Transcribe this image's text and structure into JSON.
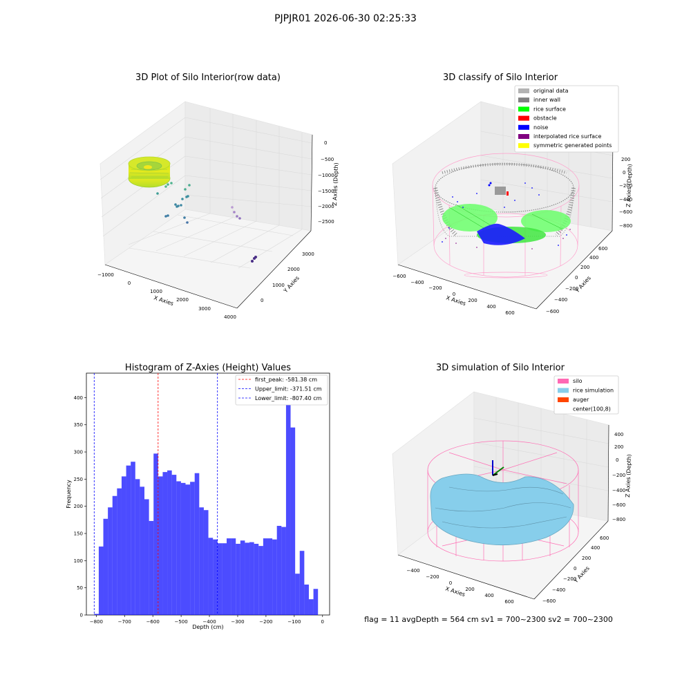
{
  "figure": {
    "suptitle": "PJPJR01 2026-06-30 02:25:33",
    "footer": "flag = 11   avgDepth = 564 cm   sv1 = 700~2300   sv2 = 700~2300"
  },
  "panels": {
    "raw": {
      "title": "3D Plot of Silo Interior(row data)",
      "xlabel": "X Axies",
      "ylabel": "Y Axies",
      "zlabel": "Z Axies (Depth)",
      "xticks": [
        "−1000",
        "0",
        "1000",
        "2000",
        "3000",
        "4000"
      ],
      "yticks": [
        "0",
        "1000",
        "2000",
        "3000"
      ],
      "zticks": [
        "0",
        "−500",
        "−1000",
        "−1500",
        "−2000",
        "−2500"
      ]
    },
    "classify": {
      "title": "3D classify of Silo Interior",
      "xlabel": "X Axies",
      "ylabel": "Y Axies",
      "zlabel": "Z Axies (Depth)",
      "xticks": [
        "−600",
        "−400",
        "−200",
        "0",
        "200",
        "400",
        "600"
      ],
      "yticks": [
        "−600",
        "−400",
        "−200",
        "0",
        "200",
        "400",
        "600"
      ],
      "zticks": [
        "200",
        "0",
        "−200",
        "−400",
        "−600",
        "−800"
      ],
      "legend": [
        {
          "label": "original data",
          "color": "#b3b3b3"
        },
        {
          "label": "inner wall",
          "color": "#808080"
        },
        {
          "label": "rice surface",
          "color": "#00ff00"
        },
        {
          "label": "obstacle",
          "color": "#ff0000"
        },
        {
          "label": "noise",
          "color": "#0000ff"
        },
        {
          "label": "interpolated rice surface",
          "color": "#800080"
        },
        {
          "label": "symmetric generated points",
          "color": "#ffff00"
        }
      ]
    },
    "simulation": {
      "title": "3D simulation of Silo Interior",
      "xlabel": "X Axies",
      "ylabel": "Y Axies",
      "zlabel": "Z Axies (Depth)",
      "xticks": [
        "−400",
        "−200",
        "0",
        "200",
        "400",
        "600"
      ],
      "yticks": [
        "−600",
        "−400",
        "−200",
        "0",
        "200",
        "400",
        "600"
      ],
      "zticks": [
        "400",
        "200",
        "0",
        "−200",
        "−400",
        "−600",
        "−800"
      ],
      "legend": [
        {
          "label": "silo",
          "color": "#ff69b4"
        },
        {
          "label": "rice simulation",
          "color": "#87ceeb"
        },
        {
          "label": "auger",
          "color": "#ff4500"
        },
        {
          "label": "center(100,8)",
          "color": ""
        }
      ]
    }
  },
  "chart_data": [
    {
      "type": "bar",
      "title": "Histogram of Z-Axies (Height) Values",
      "xlabel": "Depth (cm)",
      "ylabel": "Frequency",
      "xlim": [
        -835,
        25
      ],
      "ylim": [
        0,
        445
      ],
      "xticks": [
        -800,
        -700,
        -600,
        -500,
        -400,
        -300,
        -200,
        -100,
        0
      ],
      "yticks": [
        0,
        50,
        100,
        150,
        200,
        250,
        300,
        350,
        400
      ],
      "bin_start": -807.4,
      "bin_width": 16.15,
      "color": "#0000ff",
      "values": [
        2,
        126,
        177,
        198,
        219,
        233,
        255,
        275,
        282,
        250,
        236,
        213,
        173,
        297,
        255,
        263,
        266,
        258,
        246,
        243,
        240,
        245,
        261,
        198,
        193,
        142,
        139,
        132,
        132,
        141,
        141,
        131,
        137,
        133,
        134,
        131,
        127,
        141,
        141,
        139,
        164,
        162,
        415,
        345,
        76,
        118,
        56,
        29,
        48
      ],
      "vlines": [
        {
          "label": "first_peak: -581.38 cm",
          "x": -581.38,
          "color": "#ff0000"
        },
        {
          "label": "Upper_limit: -371.51 cm",
          "x": -371.51,
          "color": "#0000ff"
        },
        {
          "label": "Lower_limit: -807.40 cm",
          "x": -807.4,
          "color": "#0000ff"
        }
      ],
      "legend_position": "upper right"
    }
  ]
}
